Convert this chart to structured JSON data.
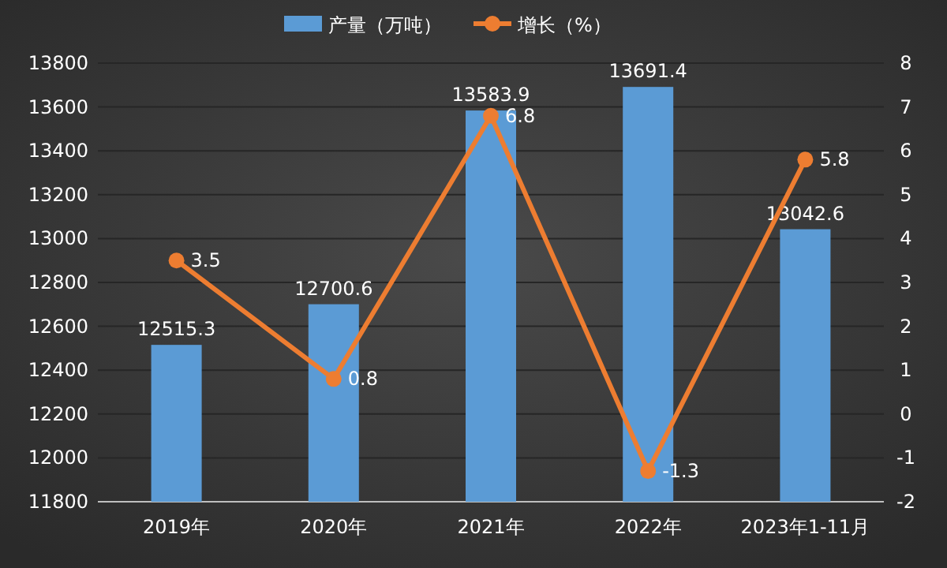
{
  "chart_data": {
    "type": "bar",
    "categories": [
      "2019年",
      "2020年",
      "2021年",
      "2022年",
      "2023年1-11月"
    ],
    "series": [
      {
        "name": "产量（万吨）",
        "color": "#5b9bd5",
        "values": [
          12515.3,
          12700.6,
          13583.9,
          13691.4,
          13042.6
        ]
      },
      {
        "name": "增长（%）",
        "type": "line",
        "axis": "y2",
        "color": "#ed7d31",
        "marker": "circle",
        "values": [
          3.5,
          0.8,
          6.8,
          -1.3,
          5.8
        ]
      }
    ],
    "ylim": [
      11800,
      13800
    ],
    "yticks": [
      11800,
      12000,
      12200,
      12400,
      12600,
      12800,
      13000,
      13200,
      13400,
      13600,
      13800
    ],
    "y2lim": [
      -2,
      8
    ],
    "y2ticks": [
      -2,
      -1,
      0,
      1,
      2,
      3,
      4,
      5,
      6,
      7,
      8
    ],
    "data_labels": true,
    "grid": "y",
    "legend": "top"
  }
}
